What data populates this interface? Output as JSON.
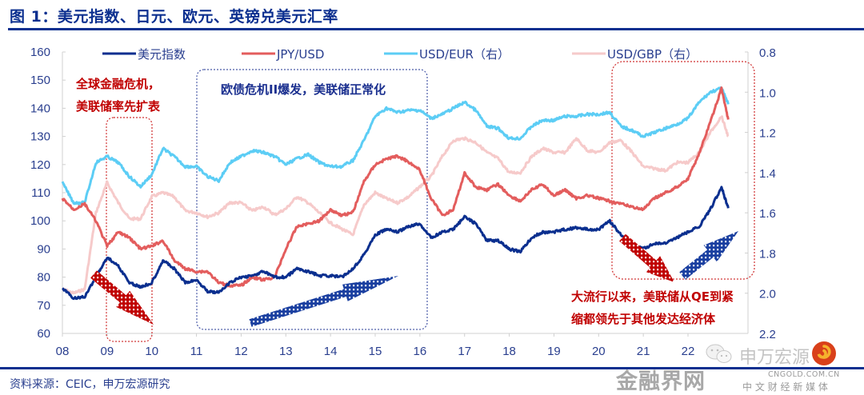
{
  "figure": {
    "title": "图 1：美元指数、日元、欧元、英镑兑美元汇率",
    "source": "资料来源：CEIC，申万宏源研究"
  },
  "watermark": {
    "brand": "金融界网",
    "domain": "CNGOLD.COM.CN",
    "tagline": "中 文 财 经 新 媒 体",
    "wechat_label": "申万宏源",
    "brand_color": "#d9401a"
  },
  "colors": {
    "dxy": "#0b2f8f",
    "jpy": "#e35d5d",
    "eur": "#5ccdf5",
    "gbp": "#f6caca",
    "axis_text": "#2a3f8f",
    "red_note": "#c00000",
    "blue_note": "#1a2f8f"
  },
  "chart_data": {
    "type": "line",
    "title": "美元指数、日元、欧元、英镑兑美元汇率",
    "xlabel": "",
    "ylabel": "",
    "x_ticks": [
      "08",
      "09",
      "10",
      "11",
      "12",
      "13",
      "14",
      "15",
      "16",
      "17",
      "18",
      "19",
      "20",
      "21",
      "22"
    ],
    "xlim": [
      2008.0,
      2022.75
    ],
    "y_left": {
      "ticks": [
        60,
        70,
        80,
        90,
        100,
        110,
        120,
        130,
        140,
        150,
        160
      ],
      "lim": [
        60,
        160
      ]
    },
    "y_right": {
      "ticks": [
        "0.8",
        "1.0",
        "1.2",
        "1.4",
        "1.6",
        "1.8",
        "2.0",
        "2.2"
      ],
      "lim": [
        0.8,
        2.2
      ],
      "inverted": true
    },
    "legend": {
      "placement": "top",
      "entries": [
        "美元指数",
        "JPY/USD",
        "USD/EUR（右）",
        "USD/GBP（右）"
      ]
    },
    "grid": false,
    "x": [
      2008.0,
      2008.25,
      2008.5,
      2008.75,
      2009.0,
      2009.25,
      2009.5,
      2009.75,
      2010.0,
      2010.25,
      2010.5,
      2010.75,
      2011.0,
      2011.25,
      2011.5,
      2011.75,
      2012.0,
      2012.25,
      2012.5,
      2012.75,
      2013.0,
      2013.25,
      2013.5,
      2013.75,
      2014.0,
      2014.25,
      2014.5,
      2014.75,
      2015.0,
      2015.25,
      2015.5,
      2015.75,
      2016.0,
      2016.25,
      2016.5,
      2016.75,
      2017.0,
      2017.25,
      2017.5,
      2017.75,
      2018.0,
      2018.25,
      2018.5,
      2018.75,
      2019.0,
      2019.25,
      2019.5,
      2019.75,
      2020.0,
      2020.25,
      2020.5,
      2020.75,
      2021.0,
      2021.25,
      2021.5,
      2021.75,
      2022.0,
      2022.25,
      2022.5,
      2022.75,
      2022.9
    ],
    "series": [
      {
        "name": "美元指数",
        "axis": "left",
        "values": [
          76,
          72.5,
          73,
          80,
          87,
          84,
          78,
          76.5,
          78,
          86,
          83,
          78,
          79,
          75,
          74.5,
          78,
          80,
          80.5,
          82,
          80,
          80,
          83,
          82,
          80.5,
          80.5,
          80,
          83,
          88,
          95,
          97,
          96,
          98,
          99,
          94,
          96,
          97,
          101.5,
          99,
          93,
          93,
          90,
          89,
          94,
          96,
          96,
          97,
          97.5,
          97,
          97,
          100,
          95,
          92,
          90,
          92,
          92,
          94,
          96,
          98,
          104,
          112,
          104.5
        ]
      },
      {
        "name": "JPY/USD",
        "axis": "left",
        "values": [
          108,
          104,
          106,
          100,
          91,
          96,
          94,
          90,
          91,
          93,
          86,
          83,
          82,
          82,
          78,
          77,
          77,
          80,
          79,
          80,
          90,
          98,
          99,
          100,
          104,
          102,
          103,
          114,
          120,
          122,
          123,
          121,
          118,
          108,
          102,
          104,
          117,
          112,
          111,
          113,
          109,
          107,
          111,
          113,
          109,
          111,
          108,
          109,
          108,
          107,
          106,
          105,
          104,
          108,
          110,
          112,
          115,
          124,
          135,
          147,
          136
        ]
      },
      {
        "name": "USD/EUR（右）",
        "axis": "right",
        "values": [
          1.45,
          1.55,
          1.55,
          1.35,
          1.32,
          1.35,
          1.42,
          1.47,
          1.41,
          1.28,
          1.32,
          1.37,
          1.37,
          1.42,
          1.44,
          1.35,
          1.32,
          1.29,
          1.3,
          1.32,
          1.36,
          1.33,
          1.31,
          1.35,
          1.37,
          1.37,
          1.34,
          1.24,
          1.12,
          1.08,
          1.1,
          1.09,
          1.09,
          1.13,
          1.11,
          1.08,
          1.05,
          1.09,
          1.17,
          1.18,
          1.23,
          1.23,
          1.17,
          1.14,
          1.14,
          1.12,
          1.12,
          1.11,
          1.11,
          1.1,
          1.17,
          1.19,
          1.22,
          1.2,
          1.18,
          1.16,
          1.13,
          1.05,
          1.0,
          0.98,
          1.06
        ]
      },
      {
        "name": "USD/GBP（右）",
        "axis": "right",
        "values": [
          1.98,
          2.0,
          1.98,
          1.6,
          1.45,
          1.55,
          1.63,
          1.63,
          1.52,
          1.5,
          1.52,
          1.59,
          1.6,
          1.62,
          1.6,
          1.55,
          1.55,
          1.59,
          1.57,
          1.61,
          1.58,
          1.52,
          1.55,
          1.6,
          1.65,
          1.68,
          1.71,
          1.56,
          1.5,
          1.53,
          1.55,
          1.52,
          1.47,
          1.42,
          1.32,
          1.24,
          1.23,
          1.25,
          1.3,
          1.33,
          1.4,
          1.4,
          1.32,
          1.28,
          1.3,
          1.3,
          1.23,
          1.29,
          1.3,
          1.25,
          1.24,
          1.3,
          1.37,
          1.38,
          1.39,
          1.35,
          1.35,
          1.3,
          1.2,
          1.12,
          1.22
        ]
      }
    ],
    "annotations": [
      {
        "text_lines": [
          "全球金融危机，",
          "美联储率先扩表"
        ],
        "color": "red",
        "period": [
          "2008.9",
          "2009.9"
        ],
        "arrow": "down"
      },
      {
        "text_lines": [
          "欧债危机II爆发，美联储正常化"
        ],
        "color": "blue",
        "period": [
          "2010.9",
          "2016.0"
        ],
        "arrow": "up"
      },
      {
        "text_lines": [
          "大流行以来，美联储从QE到紧",
          "缩都领先于其他发达经济体"
        ],
        "color": "red",
        "period": [
          "2020.0",
          "2023.0"
        ],
        "arrow": "down-then-up"
      }
    ]
  }
}
